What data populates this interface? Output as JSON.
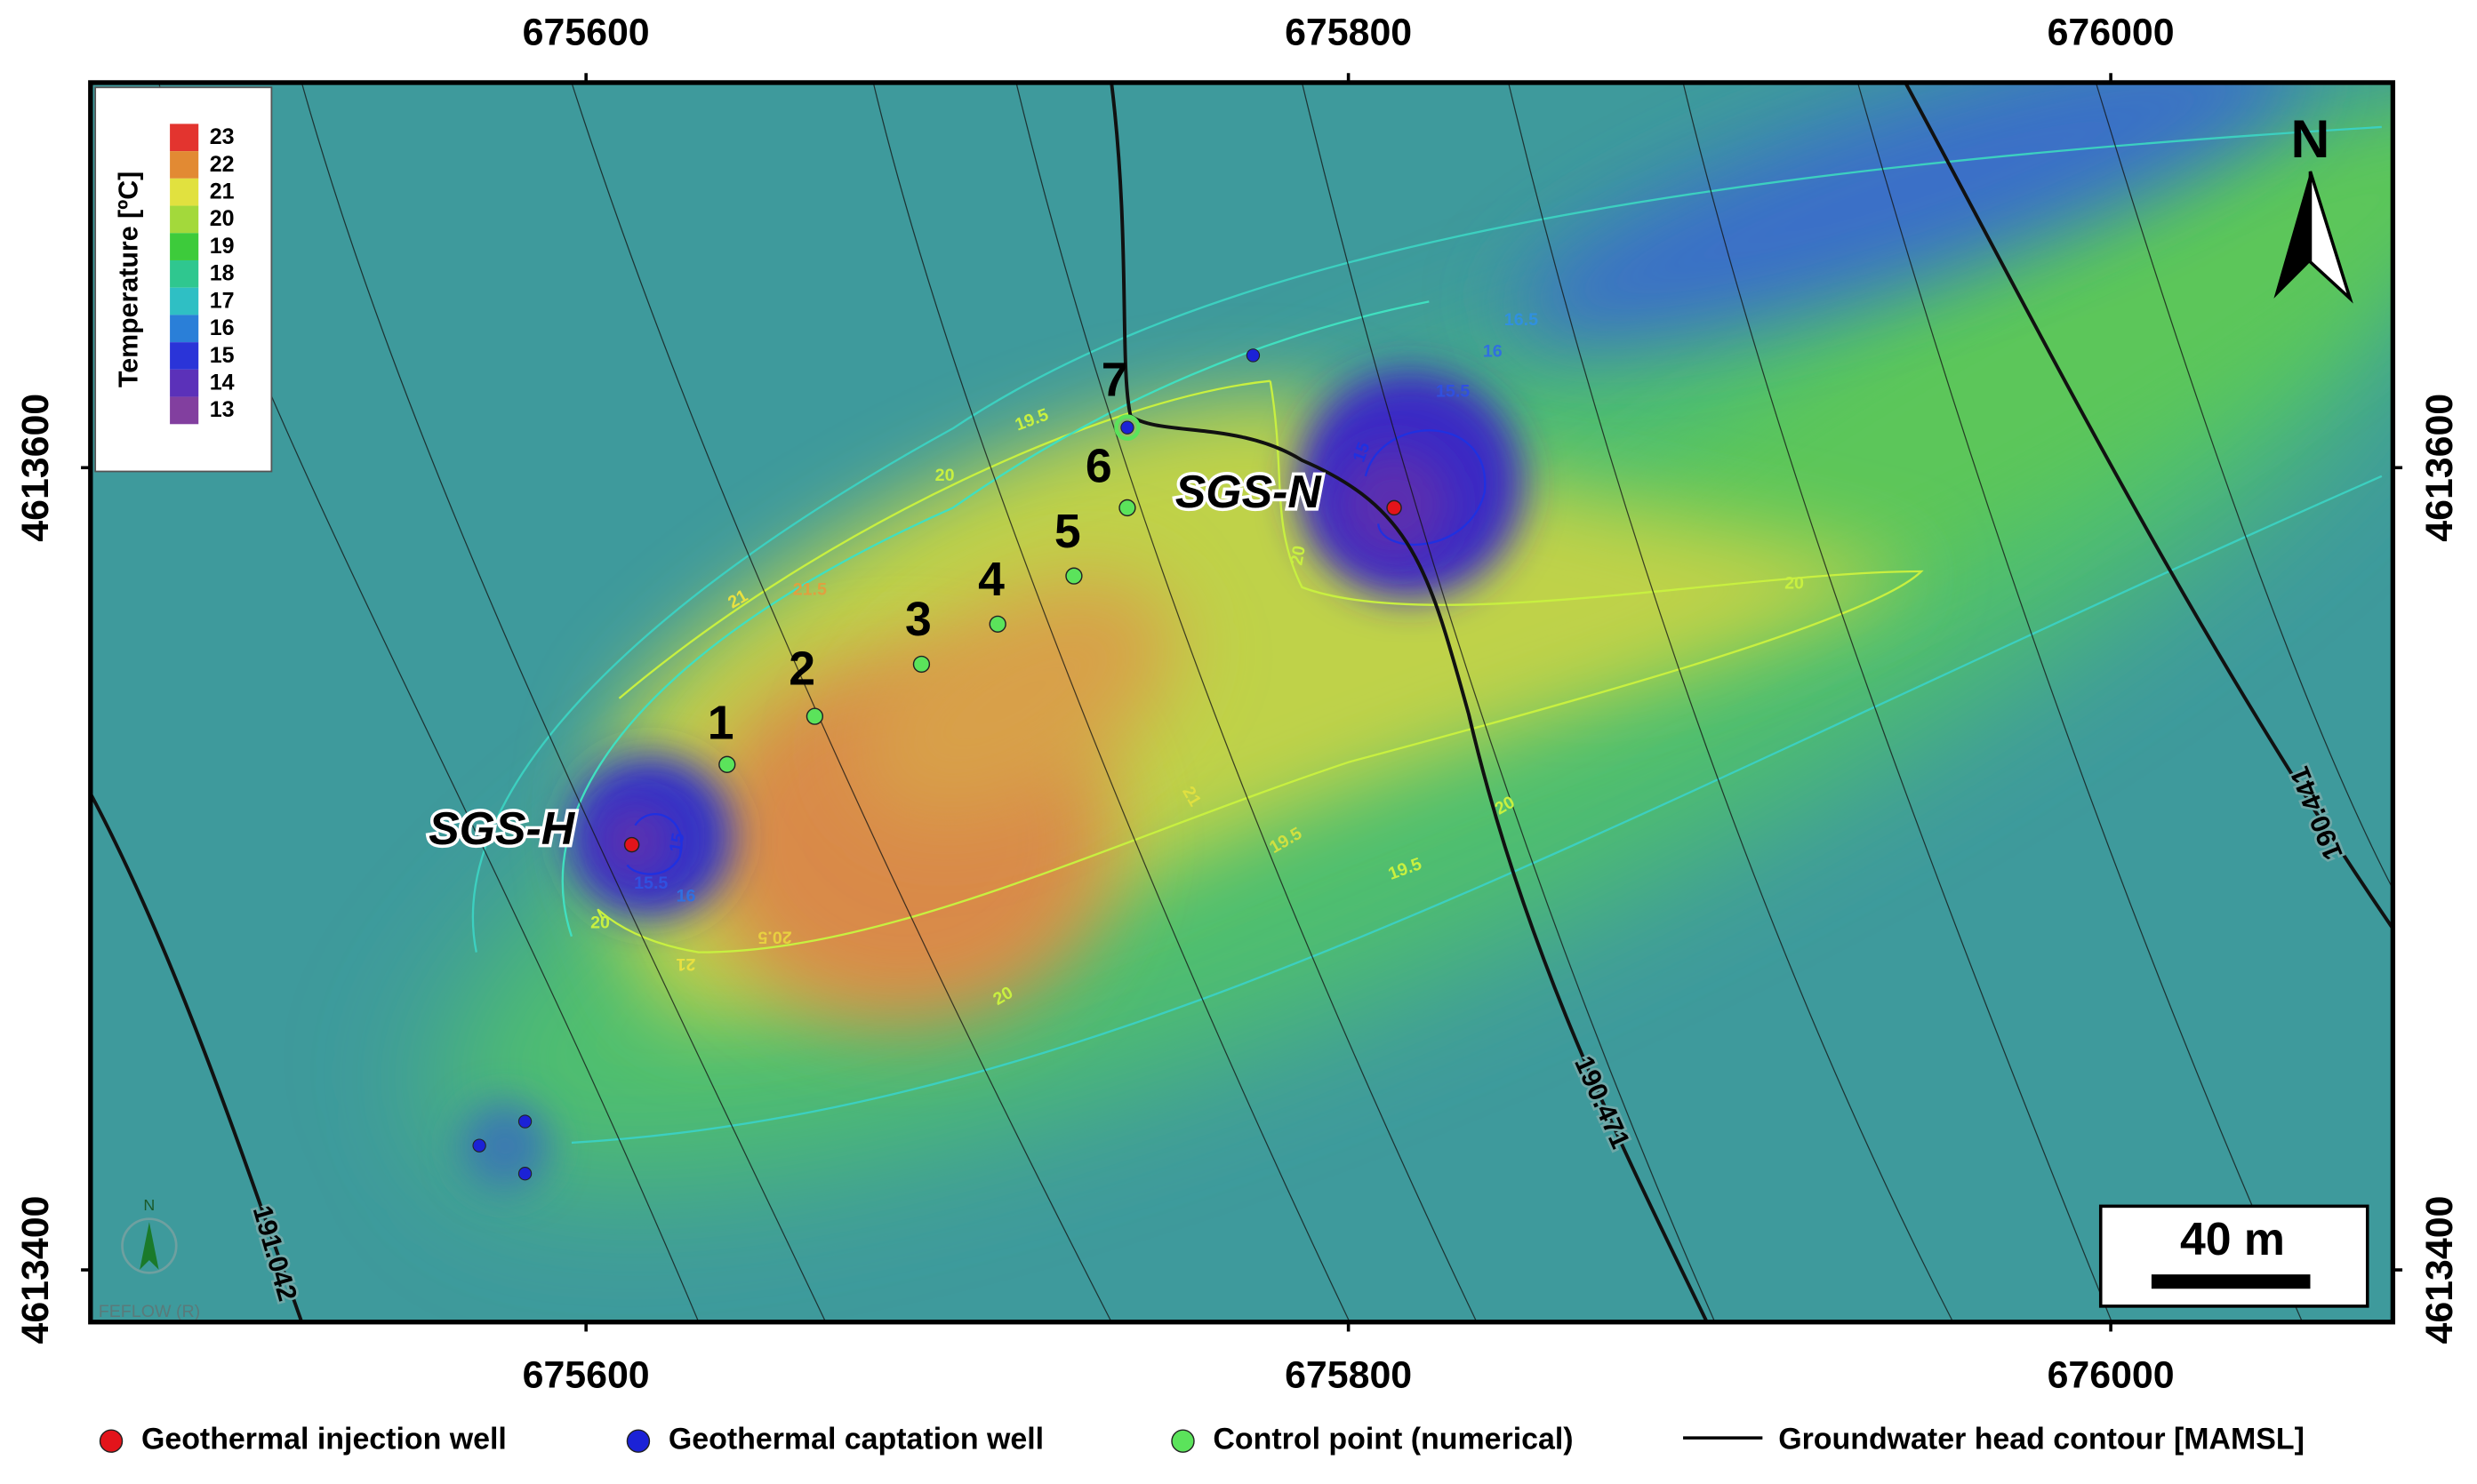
{
  "map": {
    "xlim": [
      675470,
      676074
    ],
    "ylim": [
      4613387,
      4613696
    ],
    "xticks": [
      675600,
      675800,
      676000
    ],
    "yticks": [
      4613400,
      4613600
    ],
    "north": "N",
    "scale_bar": "40 m",
    "watermark": "FEFLOW (R)",
    "colorbar": {
      "title": "Temperature [ºC]",
      "levels": [
        {
          "value": 23,
          "color": "#e3342f"
        },
        {
          "value": 22,
          "color": "#e28a33"
        },
        {
          "value": 21,
          "color": "#e1e13f"
        },
        {
          "value": 20,
          "color": "#a3d93b"
        },
        {
          "value": 19,
          "color": "#3dcb3b"
        },
        {
          "value": 18,
          "color": "#2fc78f"
        },
        {
          "value": 17,
          "color": "#2fbfc4"
        },
        {
          "value": 16,
          "color": "#2a7fd8"
        },
        {
          "value": 15,
          "color": "#2a34d8"
        },
        {
          "value": 14,
          "color": "#5b31b9"
        },
        {
          "value": 13,
          "color": "#823f9f"
        }
      ]
    },
    "injection_wells": [
      {
        "name": "SGS-H",
        "x": 675612,
        "y": 4613506
      },
      {
        "name": "SGS-N",
        "x": 675812,
        "y": 4613590
      }
    ],
    "captation_wells": [
      {
        "x": 675775,
        "y": 4613628
      },
      {
        "x": 675572,
        "y": 4613431
      },
      {
        "x": 675584,
        "y": 4613437
      },
      {
        "x": 675584,
        "y": 4613424
      },
      {
        "x": 675742,
        "y": 4613610
      }
    ],
    "control_points": [
      {
        "name": "1",
        "x": 675637,
        "y": 4613526
      },
      {
        "name": "2",
        "x": 675660,
        "y": 4613538
      },
      {
        "name": "3",
        "x": 675688,
        "y": 4613551
      },
      {
        "name": "4",
        "x": 675708,
        "y": 4613561
      },
      {
        "name": "5",
        "x": 675728,
        "y": 4613573
      },
      {
        "name": "6",
        "x": 675742,
        "y": 4613590
      },
      {
        "name": "7",
        "x": 675742,
        "y": 4613610
      }
    ],
    "head_contours": [
      "191.042",
      "190.471",
      "190.441"
    ],
    "temperature_contour_labels": [
      "20",
      "21",
      "21.5",
      "19.5",
      "20",
      "15.5",
      "16",
      "16.5",
      "15",
      "20",
      "15",
      "15.5",
      "16",
      "20",
      "21",
      "20.5",
      "20",
      "20",
      "19.5",
      "21",
      "19.5"
    ],
    "legend": [
      {
        "label": "Geothermal injection well",
        "color": "#e3141b"
      },
      {
        "label": "Geothermal captation well",
        "color": "#1b22d6"
      },
      {
        "label": "Control point (numerical)",
        "color": "#5be35b"
      },
      {
        "label": "Groundwater head contour [MAMSL]",
        "color": "#000000"
      }
    ]
  }
}
